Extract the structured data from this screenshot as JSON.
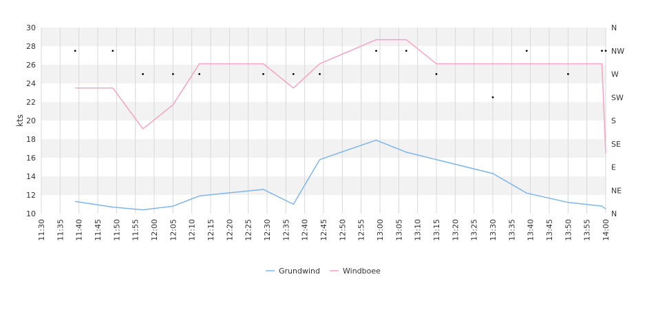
{
  "chart_data": {
    "type": "line",
    "ylabel": "kts",
    "ylim": [
      10,
      30
    ],
    "yticks": [
      "10",
      "12",
      "14",
      "16",
      "18",
      "20",
      "22",
      "24",
      "26",
      "28",
      "30"
    ],
    "xlim": [
      "11:30",
      "14:00"
    ],
    "xticks": [
      "11:30",
      "11:35",
      "11:40",
      "11:45",
      "11:50",
      "11:55",
      "12:00",
      "12:05",
      "12:10",
      "12:15",
      "12:20",
      "12:25",
      "12:30",
      "12:35",
      "12:40",
      "12:45",
      "12:50",
      "12:55",
      "13:00",
      "13:05",
      "13:10",
      "13:15",
      "13:20",
      "13:25",
      "13:30",
      "13:35",
      "13:40",
      "13:45",
      "13:50",
      "13:55",
      "14:00"
    ],
    "right_axis": {
      "ticks": [
        "N",
        "NE",
        "E",
        "SE",
        "S",
        "SW",
        "W",
        "NW",
        "N"
      ]
    },
    "grid": true,
    "legend_position": "bottom",
    "series": [
      {
        "name": "Grundwind",
        "color": "#7cb5ec",
        "points": [
          [
            "11:39",
            11.3
          ],
          [
            "11:49",
            10.7
          ],
          [
            "11:57",
            10.4
          ],
          [
            "12:05",
            10.8
          ],
          [
            "12:12",
            11.9
          ],
          [
            "12:29",
            12.6
          ],
          [
            "12:37",
            11.0
          ],
          [
            "12:44",
            15.8
          ],
          [
            "12:59",
            17.9
          ],
          [
            "13:07",
            16.6
          ],
          [
            "13:15",
            15.8
          ],
          [
            "13:30",
            14.3
          ],
          [
            "13:39",
            12.2
          ],
          [
            "13:50",
            11.2
          ],
          [
            "13:59",
            10.8
          ],
          [
            "14:00",
            10.5
          ]
        ]
      },
      {
        "name": "Windboee",
        "color": "#f7a1c4",
        "points": [
          [
            "11:39",
            23.5
          ],
          [
            "11:49",
            23.5
          ],
          [
            "11:57",
            19.1
          ],
          [
            "12:05",
            21.7
          ],
          [
            "12:12",
            26.1
          ],
          [
            "12:29",
            26.1
          ],
          [
            "12:37",
            23.5
          ],
          [
            "12:44",
            26.1
          ],
          [
            "12:59",
            28.7
          ],
          [
            "13:07",
            28.7
          ],
          [
            "13:15",
            26.1
          ],
          [
            "13:30",
            26.1
          ],
          [
            "13:39",
            26.1
          ],
          [
            "13:50",
            26.1
          ],
          [
            "13:59",
            26.1
          ],
          [
            "14:00",
            16.5
          ]
        ]
      }
    ],
    "direction_points": [
      [
        "11:39",
        "NW"
      ],
      [
        "11:49",
        "NW"
      ],
      [
        "11:57",
        "W"
      ],
      [
        "12:05",
        "W"
      ],
      [
        "12:12",
        "W"
      ],
      [
        "12:29",
        "W"
      ],
      [
        "12:37",
        "W"
      ],
      [
        "12:44",
        "W"
      ],
      [
        "12:59",
        "NW"
      ],
      [
        "13:07",
        "NW"
      ],
      [
        "13:15",
        "W"
      ],
      [
        "13:30",
        "SW"
      ],
      [
        "13:39",
        "NW"
      ],
      [
        "13:50",
        "W"
      ],
      [
        "13:59",
        "NW"
      ],
      [
        "14:00",
        "NW"
      ]
    ]
  }
}
